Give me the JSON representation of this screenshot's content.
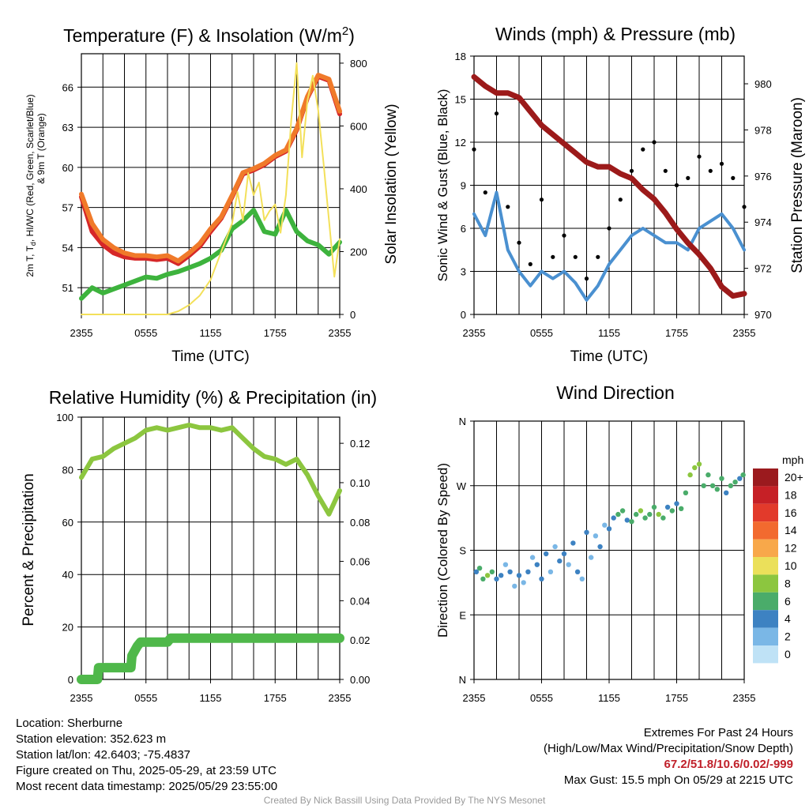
{
  "panels": {
    "temperature": {
      "title": "Temperature (F) & Insolation (W/m",
      "title_sup": "2",
      "title_close": ")",
      "ylabel_line1": "2m T, T",
      "ylabel_sub": "d",
      "ylabel_line1_rest": ", HI/WC (Red, Green, Scarlet/Blue)",
      "ylabel_line2": "& 9m T (Orange)",
      "y2label": "Solar Insolation (Yellow)",
      "xlabel": "Time (UTC)"
    },
    "winds": {
      "title": "Winds (mph) & Pressure (mb)",
      "ylabel": "Sonic Wind & Gust (Blue, Black)",
      "y2label": "Station Pressure (Maroon)",
      "xlabel": "Time (UTC)"
    },
    "humidity": {
      "title": "Relative Humidity (%) & Precipitation (in)",
      "ylabel": "Percent & Precipitation"
    },
    "direction": {
      "title": "Wind Direction",
      "ylabel": "Direction (Colored By Speed)",
      "legend_title": "mph"
    }
  },
  "chart_data": [
    {
      "type": "line",
      "id": "temperature",
      "x_ticks": [
        "2355",
        "0555",
        "1155",
        "1755",
        "2355"
      ],
      "y_ticks": [
        "51",
        "54",
        "57",
        "60",
        "63",
        "66"
      ],
      "y2_ticks": [
        "0",
        "200",
        "400",
        "600",
        "800"
      ],
      "ylim": [
        49,
        68.5
      ],
      "y2lim": [
        0,
        830
      ],
      "xlim": [
        0,
        24
      ],
      "series": [
        {
          "name": "2m T",
          "color": "#d62728",
          "x": [
            0,
            1,
            2,
            3,
            4,
            5,
            6,
            7,
            8,
            9,
            10,
            11,
            12,
            13,
            14,
            15,
            16,
            17,
            18,
            19,
            20,
            21,
            22,
            23,
            24
          ],
          "y": [
            57.8,
            55.2,
            54.2,
            53.6,
            53.3,
            53.2,
            53.2,
            53.1,
            53.2,
            52.8,
            53.4,
            54.1,
            55.2,
            56.2,
            57.8,
            59.5,
            59.8,
            60.2,
            60.8,
            61.2,
            62.8,
            65.2,
            66.8,
            66.5,
            64.0
          ]
        },
        {
          "name": "9m T",
          "color": "#f07a2a",
          "x": [
            0,
            1,
            2,
            3,
            4,
            5,
            6,
            7,
            8,
            9,
            10,
            11,
            12,
            13,
            14,
            15,
            16,
            17,
            18,
            19,
            20,
            21,
            22,
            23,
            24
          ],
          "y": [
            58.0,
            55.8,
            54.6,
            54.0,
            53.6,
            53.4,
            53.4,
            53.3,
            53.4,
            53.0,
            53.6,
            54.3,
            55.4,
            56.3,
            57.9,
            59.6,
            59.9,
            60.3,
            60.9,
            61.3,
            62.9,
            65.3,
            66.9,
            66.6,
            64.2
          ]
        },
        {
          "name": "Td",
          "color": "#3db33d",
          "x": [
            0,
            1,
            2,
            3,
            4,
            5,
            6,
            7,
            8,
            9,
            10,
            11,
            12,
            13,
            14,
            15,
            16,
            17,
            18,
            19,
            20,
            21,
            22,
            23,
            24
          ],
          "y": [
            50.2,
            51.0,
            50.6,
            50.9,
            51.2,
            51.5,
            51.8,
            51.7,
            52.0,
            52.2,
            52.5,
            52.8,
            53.2,
            53.8,
            55.4,
            56.0,
            56.8,
            55.2,
            55.0,
            56.8,
            55.2,
            54.5,
            54.2,
            53.5,
            54.4
          ]
        },
        {
          "name": "Solar",
          "axis": "y2",
          "color": "#f3e05a",
          "x": [
            0,
            2,
            4,
            6,
            8,
            9,
            10,
            11,
            12,
            13,
            14,
            14.5,
            15,
            15.5,
            16,
            16.5,
            17,
            17.5,
            18,
            18.5,
            19,
            19.5,
            20,
            20.5,
            21,
            21.5,
            22,
            22.5,
            23,
            23.5,
            24
          ],
          "y": [
            0,
            0,
            0,
            0,
            0,
            10,
            30,
            60,
            110,
            200,
            290,
            390,
            300,
            450,
            380,
            420,
            300,
            330,
            350,
            260,
            380,
            620,
            800,
            500,
            680,
            760,
            650,
            480,
            300,
            120,
            240
          ]
        }
      ]
    },
    {
      "type": "line",
      "id": "winds",
      "x_ticks": [
        "2355",
        "0555",
        "1155",
        "1755",
        "2355"
      ],
      "y_ticks": [
        "0",
        "3",
        "6",
        "9",
        "12",
        "15",
        "18"
      ],
      "y2_ticks": [
        "970",
        "972",
        "974",
        "976",
        "978",
        "980"
      ],
      "ylim": [
        0,
        18
      ],
      "y2lim": [
        970,
        981.2
      ],
      "xlim": [
        0,
        24
      ],
      "series": [
        {
          "name": "Sonic Wind",
          "color": "#4a90d0",
          "x": [
            0,
            1,
            2,
            3,
            4,
            5,
            6,
            7,
            8,
            9,
            10,
            11,
            12,
            13,
            14,
            15,
            16,
            17,
            18,
            19,
            20,
            21,
            22,
            23,
            24
          ],
          "y": [
            7.0,
            5.5,
            8.5,
            4.5,
            3.0,
            2.0,
            3.0,
            2.5,
            3.0,
            2.2,
            1.0,
            2.0,
            3.5,
            4.5,
            5.5,
            6.0,
            5.5,
            5.0,
            5.0,
            4.5,
            6.0,
            6.5,
            7.0,
            6.0,
            4.5
          ]
        },
        {
          "name": "Gust",
          "color": "#000000",
          "x": [
            0,
            1,
            2,
            3,
            4,
            5,
            6,
            7,
            8,
            9,
            10,
            11,
            12,
            13,
            14,
            15,
            16,
            17,
            18,
            19,
            20,
            21,
            22,
            23,
            24
          ],
          "y": [
            11.5,
            8.5,
            14.0,
            7.5,
            5.0,
            3.5,
            8.0,
            4.0,
            5.5,
            4.0,
            2.5,
            4.0,
            6.0,
            8.0,
            10.0,
            11.5,
            12.0,
            10.0,
            9.0,
            9.5,
            11.0,
            10.0,
            10.5,
            9.5,
            7.5
          ]
        },
        {
          "name": "Station Pressure",
          "axis": "y2",
          "color": "#9c1a1a",
          "x": [
            0,
            1,
            2,
            3,
            4,
            5,
            6,
            7,
            8,
            9,
            10,
            11,
            12,
            13,
            14,
            15,
            16,
            17,
            18,
            19,
            20,
            21,
            22,
            23,
            24
          ],
          "y": [
            980.3,
            979.9,
            979.6,
            979.6,
            979.4,
            978.8,
            978.2,
            977.8,
            977.4,
            977.0,
            976.6,
            976.4,
            976.4,
            976.1,
            975.9,
            975.4,
            975.0,
            974.4,
            973.7,
            973.1,
            972.6,
            972.0,
            971.2,
            970.8,
            970.9
          ]
        }
      ]
    },
    {
      "type": "line",
      "id": "humidity",
      "x_ticks": [
        "2355",
        "0555",
        "1155",
        "1755",
        "2355"
      ],
      "y_ticks": [
        "0",
        "20",
        "40",
        "60",
        "80",
        "100"
      ],
      "y2_ticks": [
        "0.00",
        "0.02",
        "0.04",
        "0.06",
        "0.08",
        "0.10",
        "0.12"
      ],
      "ylim": [
        0,
        100
      ],
      "y2lim": [
        0,
        0.1333
      ],
      "xlim": [
        0,
        24
      ],
      "series": [
        {
          "name": "Relative Humidity",
          "color": "#8cc63f",
          "x": [
            0,
            1,
            2,
            3,
            4,
            5,
            6,
            7,
            8,
            9,
            10,
            11,
            12,
            13,
            14,
            15,
            16,
            17,
            18,
            19,
            20,
            21,
            22,
            23,
            24
          ],
          "y": [
            77,
            84,
            85,
            88,
            90,
            92,
            95,
            96,
            95,
            96,
            97,
            96,
            96,
            95,
            96,
            92,
            88,
            85,
            84,
            82,
            84,
            78,
            70,
            63,
            72
          ]
        },
        {
          "name": "Precipitation",
          "axis": "y2",
          "color": "#4fb84a",
          "x": [
            0,
            1.5,
            1.6,
            4.6,
            4.7,
            5.2,
            5.5,
            8.0,
            8.3,
            12,
            18,
            24
          ],
          "y": [
            0.0,
            0.0,
            0.006,
            0.006,
            0.012,
            0.017,
            0.019,
            0.019,
            0.021,
            0.021,
            0.021,
            0.021
          ]
        }
      ]
    },
    {
      "type": "scatter",
      "id": "direction",
      "x_ticks": [
        "2355",
        "0555",
        "1155",
        "1755",
        "2355"
      ],
      "y_ticks": [
        "N",
        "E",
        "S",
        "W",
        "N"
      ],
      "ylim": [
        0,
        360
      ],
      "xlim": [
        0,
        24
      ],
      "points": [
        [
          0.2,
          150,
          4
        ],
        [
          0.5,
          155,
          6
        ],
        [
          0.8,
          140,
          5
        ],
        [
          1.2,
          145,
          7
        ],
        [
          1.6,
          150,
          6
        ],
        [
          2.0,
          140,
          3
        ],
        [
          2.4,
          145,
          4
        ],
        [
          2.8,
          160,
          2
        ],
        [
          3.2,
          150,
          3
        ],
        [
          3.6,
          130,
          2
        ],
        [
          4.0,
          145,
          3
        ],
        [
          4.4,
          135,
          1
        ],
        [
          4.8,
          150,
          4
        ],
        [
          5.2,
          170,
          2
        ],
        [
          5.6,
          160,
          3
        ],
        [
          6.0,
          140,
          4
        ],
        [
          6.4,
          175,
          3
        ],
        [
          6.8,
          150,
          1
        ],
        [
          7.2,
          185,
          2
        ],
        [
          7.6,
          165,
          4
        ],
        [
          8.0,
          175,
          3
        ],
        [
          8.4,
          160,
          2
        ],
        [
          8.8,
          190,
          4
        ],
        [
          9.2,
          150,
          3
        ],
        [
          9.6,
          140,
          2
        ],
        [
          10.0,
          205,
          3
        ],
        [
          10.4,
          170,
          1
        ],
        [
          10.8,
          200,
          2
        ],
        [
          11.2,
          185,
          3
        ],
        [
          11.6,
          215,
          1
        ],
        [
          12.0,
          210,
          4
        ],
        [
          12.4,
          225,
          3
        ],
        [
          12.8,
          230,
          5
        ],
        [
          13.2,
          235,
          6
        ],
        [
          13.6,
          222,
          3
        ],
        [
          14.0,
          220,
          5
        ],
        [
          14.4,
          230,
          6
        ],
        [
          14.8,
          235,
          7
        ],
        [
          15.2,
          225,
          6
        ],
        [
          15.6,
          230,
          5
        ],
        [
          16.0,
          240,
          6
        ],
        [
          16.4,
          230,
          7
        ],
        [
          16.8,
          225,
          5
        ],
        [
          17.2,
          240,
          4
        ],
        [
          17.6,
          235,
          5
        ],
        [
          18.0,
          245,
          3
        ],
        [
          18.4,
          238,
          6
        ],
        [
          18.8,
          260,
          5
        ],
        [
          19.2,
          285,
          7
        ],
        [
          19.6,
          295,
          8
        ],
        [
          20.0,
          300,
          7
        ],
        [
          20.4,
          270,
          6
        ],
        [
          20.8,
          285,
          5
        ],
        [
          21.2,
          270,
          6
        ],
        [
          21.6,
          265,
          5
        ],
        [
          22.0,
          280,
          6
        ],
        [
          22.4,
          260,
          4
        ],
        [
          22.8,
          270,
          5
        ],
        [
          23.2,
          275,
          6
        ],
        [
          23.6,
          280,
          4
        ],
        [
          23.9,
          285,
          5
        ]
      ],
      "legend": {
        "labels": [
          "20+",
          "18",
          "16",
          "14",
          "12",
          "10",
          "8",
          "6",
          "4",
          "2",
          "0"
        ],
        "colors": [
          "#9b1a1e",
          "#c62026",
          "#e23a2b",
          "#f26a2f",
          "#f8a84a",
          "#ebe05a",
          "#8cc63f",
          "#4aac6a",
          "#3d82c2",
          "#7ab7e6",
          "#bfe2f6"
        ]
      }
    }
  ],
  "info": {
    "location": "Location: Sherburne",
    "elevation": "Station elevation: 352.623 m",
    "latlon": "Station lat/lon: 42.6403; -75.4837",
    "created": "Figure created on Thu, 2025-05-29, at 23:59 UTC",
    "recent": "Most recent data timestamp: 2025/05/29 23:55:00",
    "extremes_title": "Extremes For Past 24 Hours",
    "extremes_fields": "(High/Low/Max Wind/Precipitation/Snow Depth)",
    "extremes_values": "67.2/51.8/10.6/0.02/-999",
    "max_gust": "Max Gust: 15.5 mph On 05/29 at 2215 UTC",
    "credit": "Created By Nick Bassill Using Data Provided By The NYS Mesonet"
  }
}
